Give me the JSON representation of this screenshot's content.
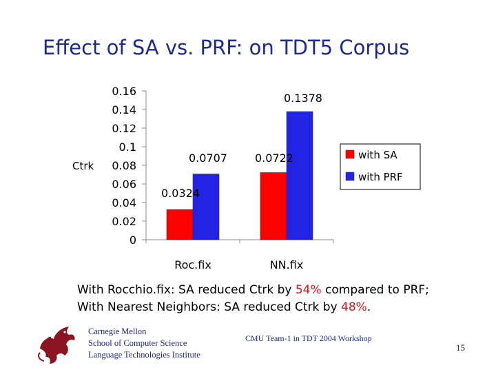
{
  "slide": {
    "title": "Effect of SA vs. PRF: on TDT5 Corpus",
    "caption_line1": {
      "pre": "With Rocchio.fix: SA reduced Ctrk by ",
      "highlight": "54%",
      "post": " compared to PRF;"
    },
    "caption_line2": {
      "pre": "With Nearest Neighbors: SA reduced Ctrk by ",
      "highlight": "48%",
      "post": "."
    },
    "footer": {
      "org_line1": "Carnegie Mellon",
      "org_line2": "School of Computer Science",
      "org_line3": "Language Technologies Institute",
      "center": "CMU Team-1 in TDT 2004 Workshop",
      "page": "15"
    }
  },
  "colors": {
    "title": "#1c2a8c",
    "with_sa": "#ff0000",
    "with_prf": "#2323e6",
    "highlight": "#d81818"
  },
  "chart_data": {
    "type": "bar",
    "categories": [
      "Roc.fix",
      "NN.fix"
    ],
    "series": [
      {
        "name": "with SA",
        "values": [
          0.0324,
          0.0722
        ],
        "labels": [
          "0.0324",
          "0.0722"
        ],
        "color": "#ff0000"
      },
      {
        "name": "with PRF",
        "values": [
          0.0707,
          0.1378
        ],
        "labels": [
          "0.0707",
          "0.1378"
        ],
        "color": "#2323e6"
      }
    ],
    "ylabel": "Ctrk",
    "ylim": [
      0,
      0.16
    ],
    "yticks": [
      "0",
      "0.02",
      "0.04",
      "0.06",
      "0.08",
      "0.1",
      "0.12",
      "0.14",
      "0.16"
    ],
    "legend": "right",
    "grid": false
  }
}
